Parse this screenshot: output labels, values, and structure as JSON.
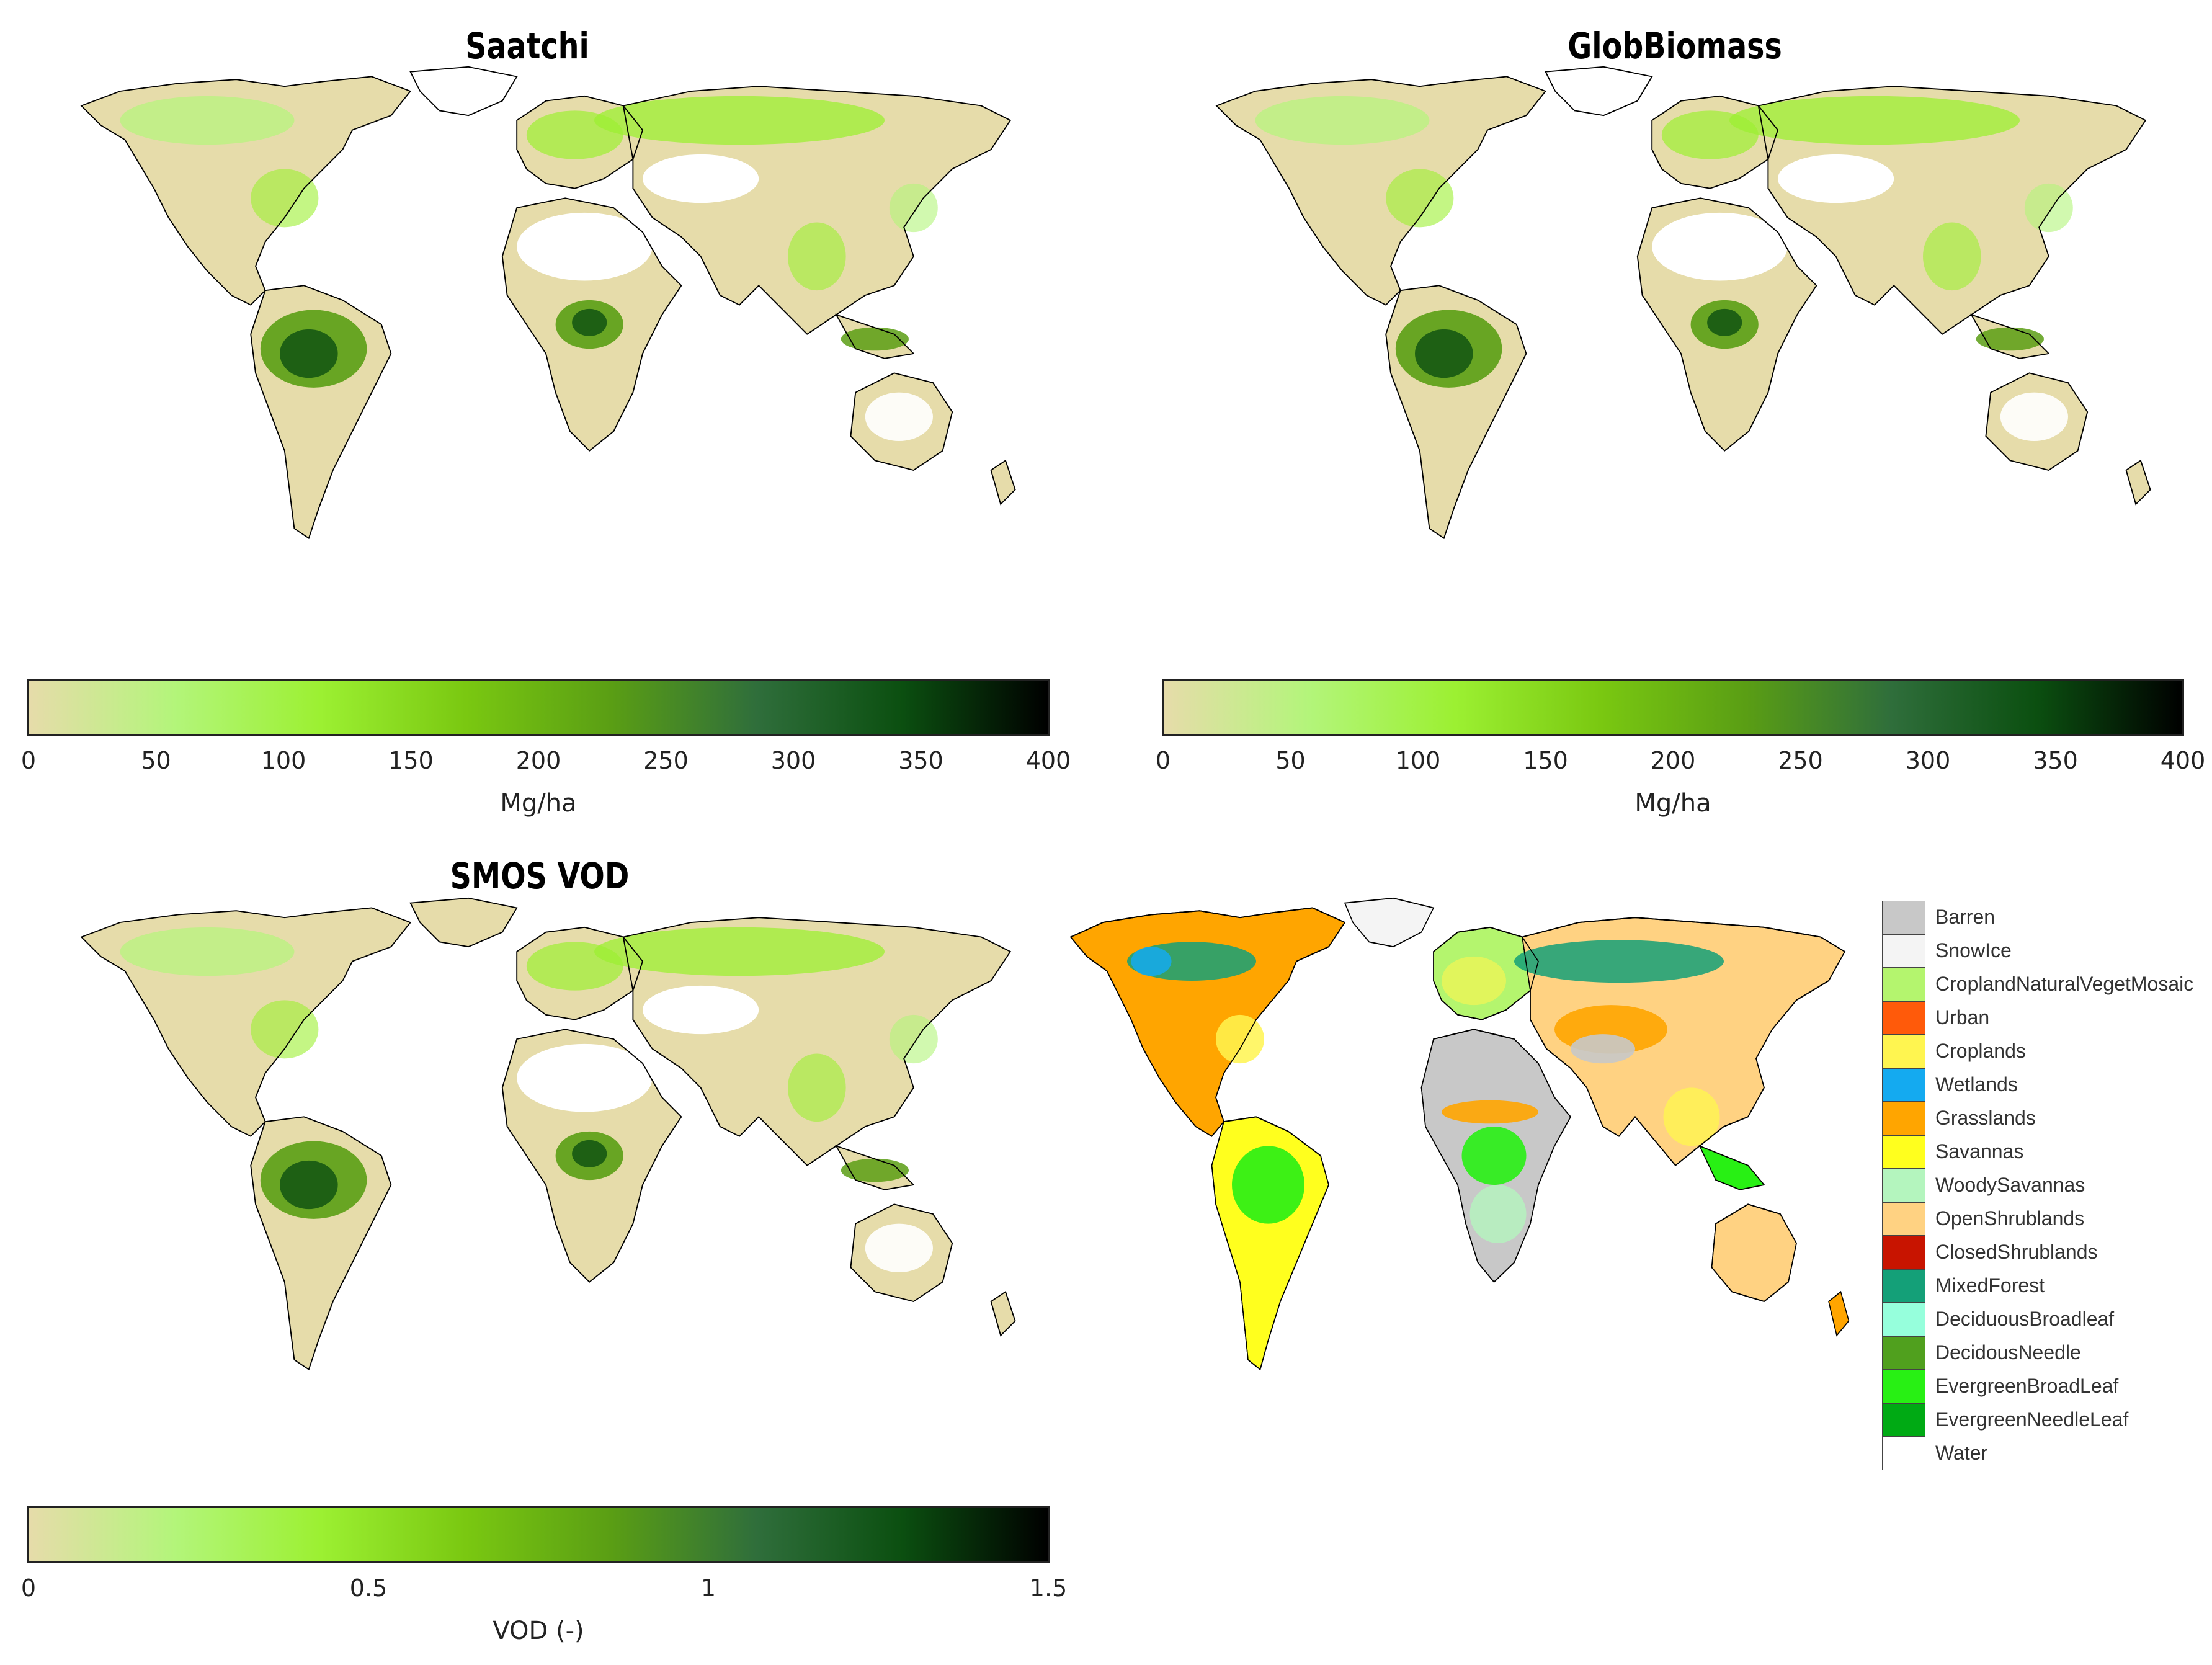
{
  "maps": [
    {
      "id": "saatchi",
      "title": "Saatchi",
      "colorbar": {
        "min": 0,
        "max": 400,
        "ticks": [
          "0",
          "50",
          "100",
          "150",
          "200",
          "250",
          "300",
          "350",
          "400"
        ],
        "unit": "Mg/ha"
      }
    },
    {
      "id": "globbiomass",
      "title": "GlobBiomass",
      "colorbar": {
        "min": 0,
        "max": 400,
        "ticks": [
          "0",
          "50",
          "100",
          "150",
          "200",
          "250",
          "300",
          "350",
          "400"
        ],
        "unit": "Mg/ha"
      }
    },
    {
      "id": "smos-vod",
      "title": "SMOS VOD",
      "colorbar": {
        "min": 0,
        "max": 1.5,
        "ticks": [
          "0",
          "0.5",
          "1",
          "1.5"
        ],
        "unit": "VOD (-)"
      }
    },
    {
      "id": "land-cover",
      "title": ""
    }
  ],
  "colormap": [
    "#e6dcaa",
    "#b3f57a",
    "#9cf032",
    "#7ac811",
    "#5a9e14",
    "#2f6e3b",
    "#0b4f10",
    "#000000"
  ],
  "legend": [
    {
      "label": "Barren",
      "color": "#c8c8c8"
    },
    {
      "label": "SnowIce",
      "color": "#f4f4f4"
    },
    {
      "label": "CroplandNaturalVegetMosaic",
      "color": "#b4f56e"
    },
    {
      "label": "Urban",
      "color": "#ff5a0a"
    },
    {
      "label": "Croplands",
      "color": "#fff550"
    },
    {
      "label": "Wetlands",
      "color": "#14aaf0"
    },
    {
      "label": "Grasslands",
      "color": "#ffa500"
    },
    {
      "label": "Savannas",
      "color": "#ffff1e"
    },
    {
      "label": "WoodySavannas",
      "color": "#b4f5be"
    },
    {
      "label": "OpenShrublands",
      "color": "#ffd282"
    },
    {
      "label": "ClosedShrublands",
      "color": "#c81400"
    },
    {
      "label": "MixedForest",
      "color": "#14a078"
    },
    {
      "label": "DeciduousBroadleaf",
      "color": "#96ffdc"
    },
    {
      "label": "DecidousNeedle",
      "color": "#50a01e"
    },
    {
      "label": "EvergreenBroadLeaf",
      "color": "#28f014"
    },
    {
      "label": "EvergreenNeedleLeaf",
      "color": "#00aa14"
    },
    {
      "label": "Water",
      "color": "#ffffff"
    }
  ]
}
